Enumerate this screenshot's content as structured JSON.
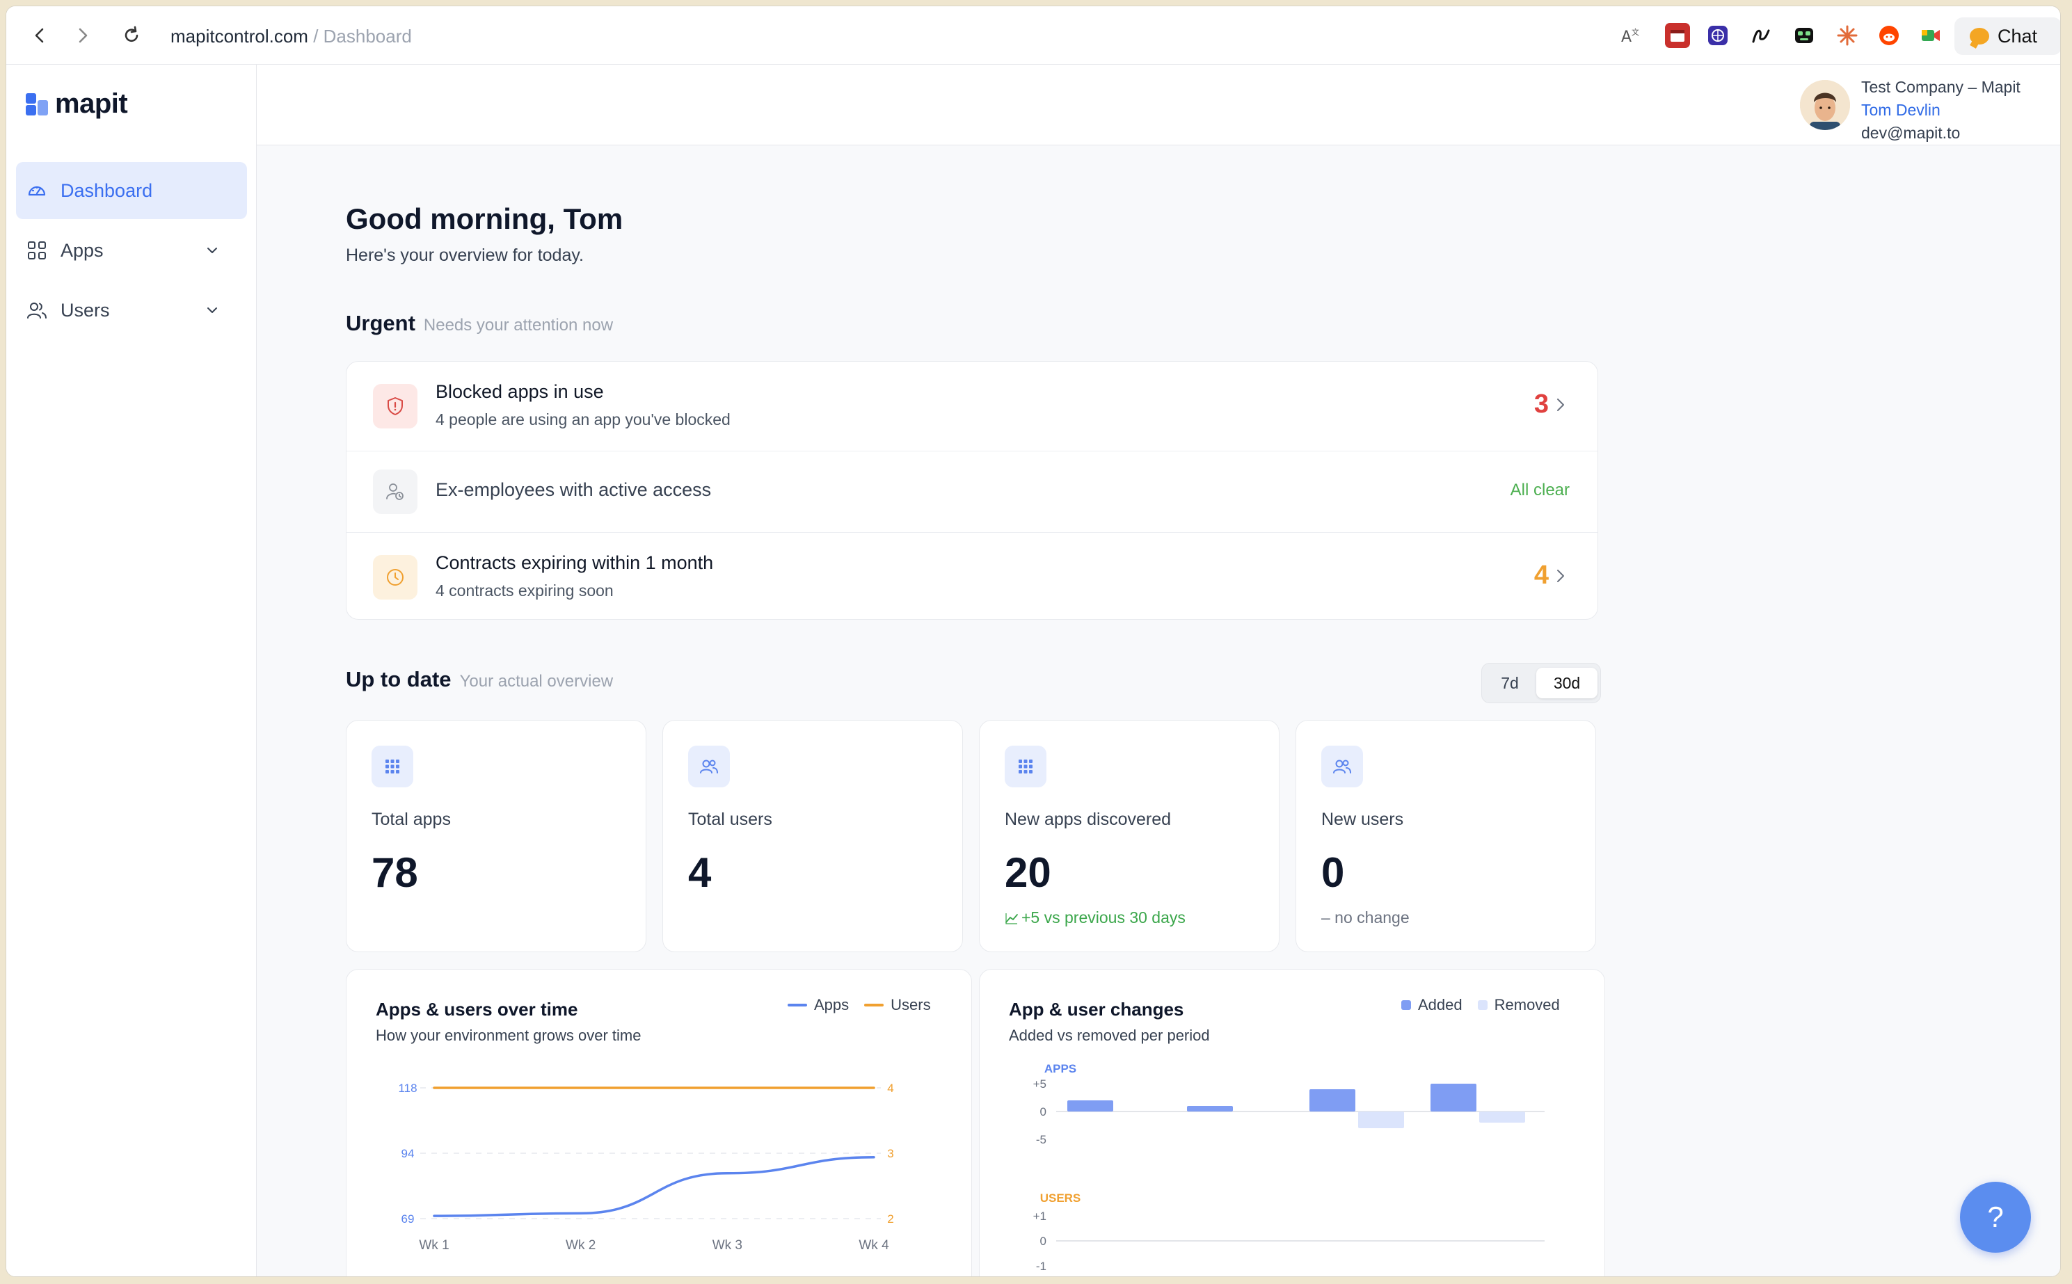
{
  "browser": {
    "url_domain": "mapitcontrol.com",
    "url_path": " / Dashboard",
    "chat_label": "Chat",
    "extensions": [
      "translate-icon",
      "calendar-extension-icon",
      "globe-extension-icon",
      "pen-extension-icon",
      "robot-extension-icon",
      "asterisk-extension-icon",
      "reddit-icon",
      "meet-icon"
    ]
  },
  "sidebar": {
    "logo_text": "mapit",
    "items": [
      {
        "label": "Dashboard",
        "icon": "gauge-icon",
        "active": true
      },
      {
        "label": "Apps",
        "icon": "grid-icon",
        "expandable": true
      },
      {
        "label": "Users",
        "icon": "users-icon",
        "expandable": true
      }
    ]
  },
  "header": {
    "company": "Test Company – Mapit",
    "user_name": "Tom Devlin",
    "email": "dev@mapit.to"
  },
  "greeting": {
    "title": "Good morning, Tom",
    "subtitle": "Here's your overview for today."
  },
  "urgent": {
    "title": "Urgent",
    "subtitle": "Needs your attention now",
    "items": [
      {
        "title": "Blocked apps in use",
        "subtitle": "4 people are using an app you've blocked",
        "count": "3",
        "color": "#e0413f",
        "icon": "shield-alert-icon"
      },
      {
        "title": "Ex-employees with active access",
        "status": "All clear",
        "color": "#4caf50",
        "icon": "user-clock-icon"
      },
      {
        "title": "Contracts expiring within 1 month",
        "subtitle": "4 contracts expiring soon",
        "count": "4",
        "color": "#f0a030",
        "icon": "clock-icon"
      }
    ]
  },
  "uptodate": {
    "title": "Up to date",
    "subtitle": "Your actual overview",
    "range_options": [
      "7d",
      "30d"
    ],
    "selected_range": "30d"
  },
  "stats": [
    {
      "label": "Total apps",
      "value": "78",
      "icon": "apps-grid-icon"
    },
    {
      "label": "Total users",
      "value": "4",
      "icon": "users-icon"
    },
    {
      "label": "New apps discovered",
      "value": "20",
      "delta": "+5 vs previous 30 days",
      "delta_color": "#3aa64a",
      "icon": "apps-grid-icon"
    },
    {
      "label": "New users",
      "value": "0",
      "delta": "– no change",
      "delta_color": "#6b7280",
      "icon": "users-icon"
    }
  ],
  "charts": {
    "growth": {
      "title": "Apps & users over time",
      "subtitle": "How your environment grows over time",
      "legend": [
        "Apps",
        "Users"
      ]
    },
    "changes": {
      "title": "App & user changes",
      "subtitle": "Added vs removed per period",
      "legend": [
        "Added",
        "Removed"
      ]
    }
  },
  "chart_data": [
    {
      "type": "line",
      "title": "Apps & users over time",
      "subtitle": "How your environment grows over time",
      "categories": [
        "Wk 1",
        "Wk 2",
        "Wk 3",
        "Wk 4"
      ],
      "left_axis_ticks": [
        "118",
        "94",
        "69"
      ],
      "right_axis_ticks": [
        "4",
        "3",
        "2"
      ],
      "ylim_left": [
        69,
        118
      ],
      "ylim_right": [
        2,
        4
      ],
      "grid": true,
      "legend_position": "top-right",
      "series": [
        {
          "name": "Apps",
          "axis": "left",
          "color": "#5b84ee",
          "values": [
            70,
            71,
            86,
            92
          ]
        },
        {
          "name": "Users",
          "axis": "right",
          "color": "#f0a030",
          "values": [
            4,
            4,
            4,
            4
          ]
        }
      ]
    },
    {
      "type": "bar",
      "title": "App & user changes",
      "subtitle": "Added vs removed per period",
      "legend_position": "top-right",
      "panels": [
        {
          "label": "APPS",
          "label_color": "#5b84ee",
          "ticks": [
            "+5",
            "0",
            "-5"
          ],
          "ylim": [
            -5,
            5
          ],
          "series": [
            {
              "name": "Added",
              "color": "#7f9df3",
              "values": [
                2,
                1,
                4,
                5
              ]
            },
            {
              "name": "Removed",
              "color": "#dbe4fc",
              "values": [
                0,
                0,
                -3,
                -2
              ]
            }
          ]
        },
        {
          "label": "USERS",
          "label_color": "#f0a030",
          "ticks": [
            "+1",
            "0",
            "-1"
          ],
          "ylim": [
            -1,
            1
          ],
          "series": [
            {
              "name": "Added",
              "color": "#7f9df3",
              "values": [
                0,
                0,
                0,
                0
              ]
            },
            {
              "name": "Removed",
              "color": "#dbe4fc",
              "values": [
                0,
                0,
                0,
                0
              ]
            }
          ]
        }
      ]
    }
  ],
  "help_label": "?"
}
